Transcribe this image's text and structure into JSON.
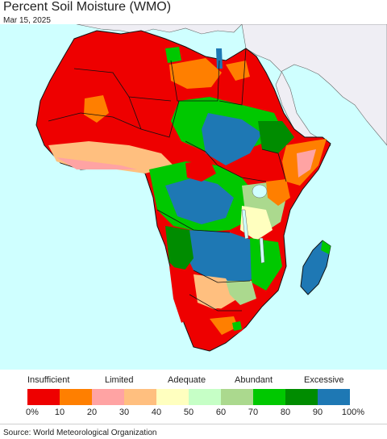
{
  "title": "Percent Soil Moisture (WMO)",
  "date": "Mar 15, 2025",
  "source": "Source: World Meteorological Organization",
  "colors": {
    "ocean": "#cfffff",
    "land_outside": "#efeef4",
    "border": "#111111",
    "admin_border": "#9a9a9a"
  },
  "legend": {
    "categories": [
      {
        "label": "Insufficient"
      },
      {
        "label": "Limited"
      },
      {
        "label": "Adequate"
      },
      {
        "label": "Abundant"
      },
      {
        "label": "Excessive"
      }
    ],
    "bins": [
      {
        "color": "#ee0000"
      },
      {
        "color": "#ff7f00"
      },
      {
        "color": "#ffa3a3"
      },
      {
        "color": "#ffbf7f"
      },
      {
        "color": "#ffffbf"
      },
      {
        "color": "#c6ffc6"
      },
      {
        "color": "#abd98e"
      },
      {
        "color": "#00c800"
      },
      {
        "color": "#008c00"
      },
      {
        "color": "#1e78b4"
      }
    ],
    "ticks": [
      "0%",
      "10",
      "20",
      "30",
      "40",
      "50",
      "60",
      "70",
      "80",
      "90",
      "100%"
    ]
  }
}
